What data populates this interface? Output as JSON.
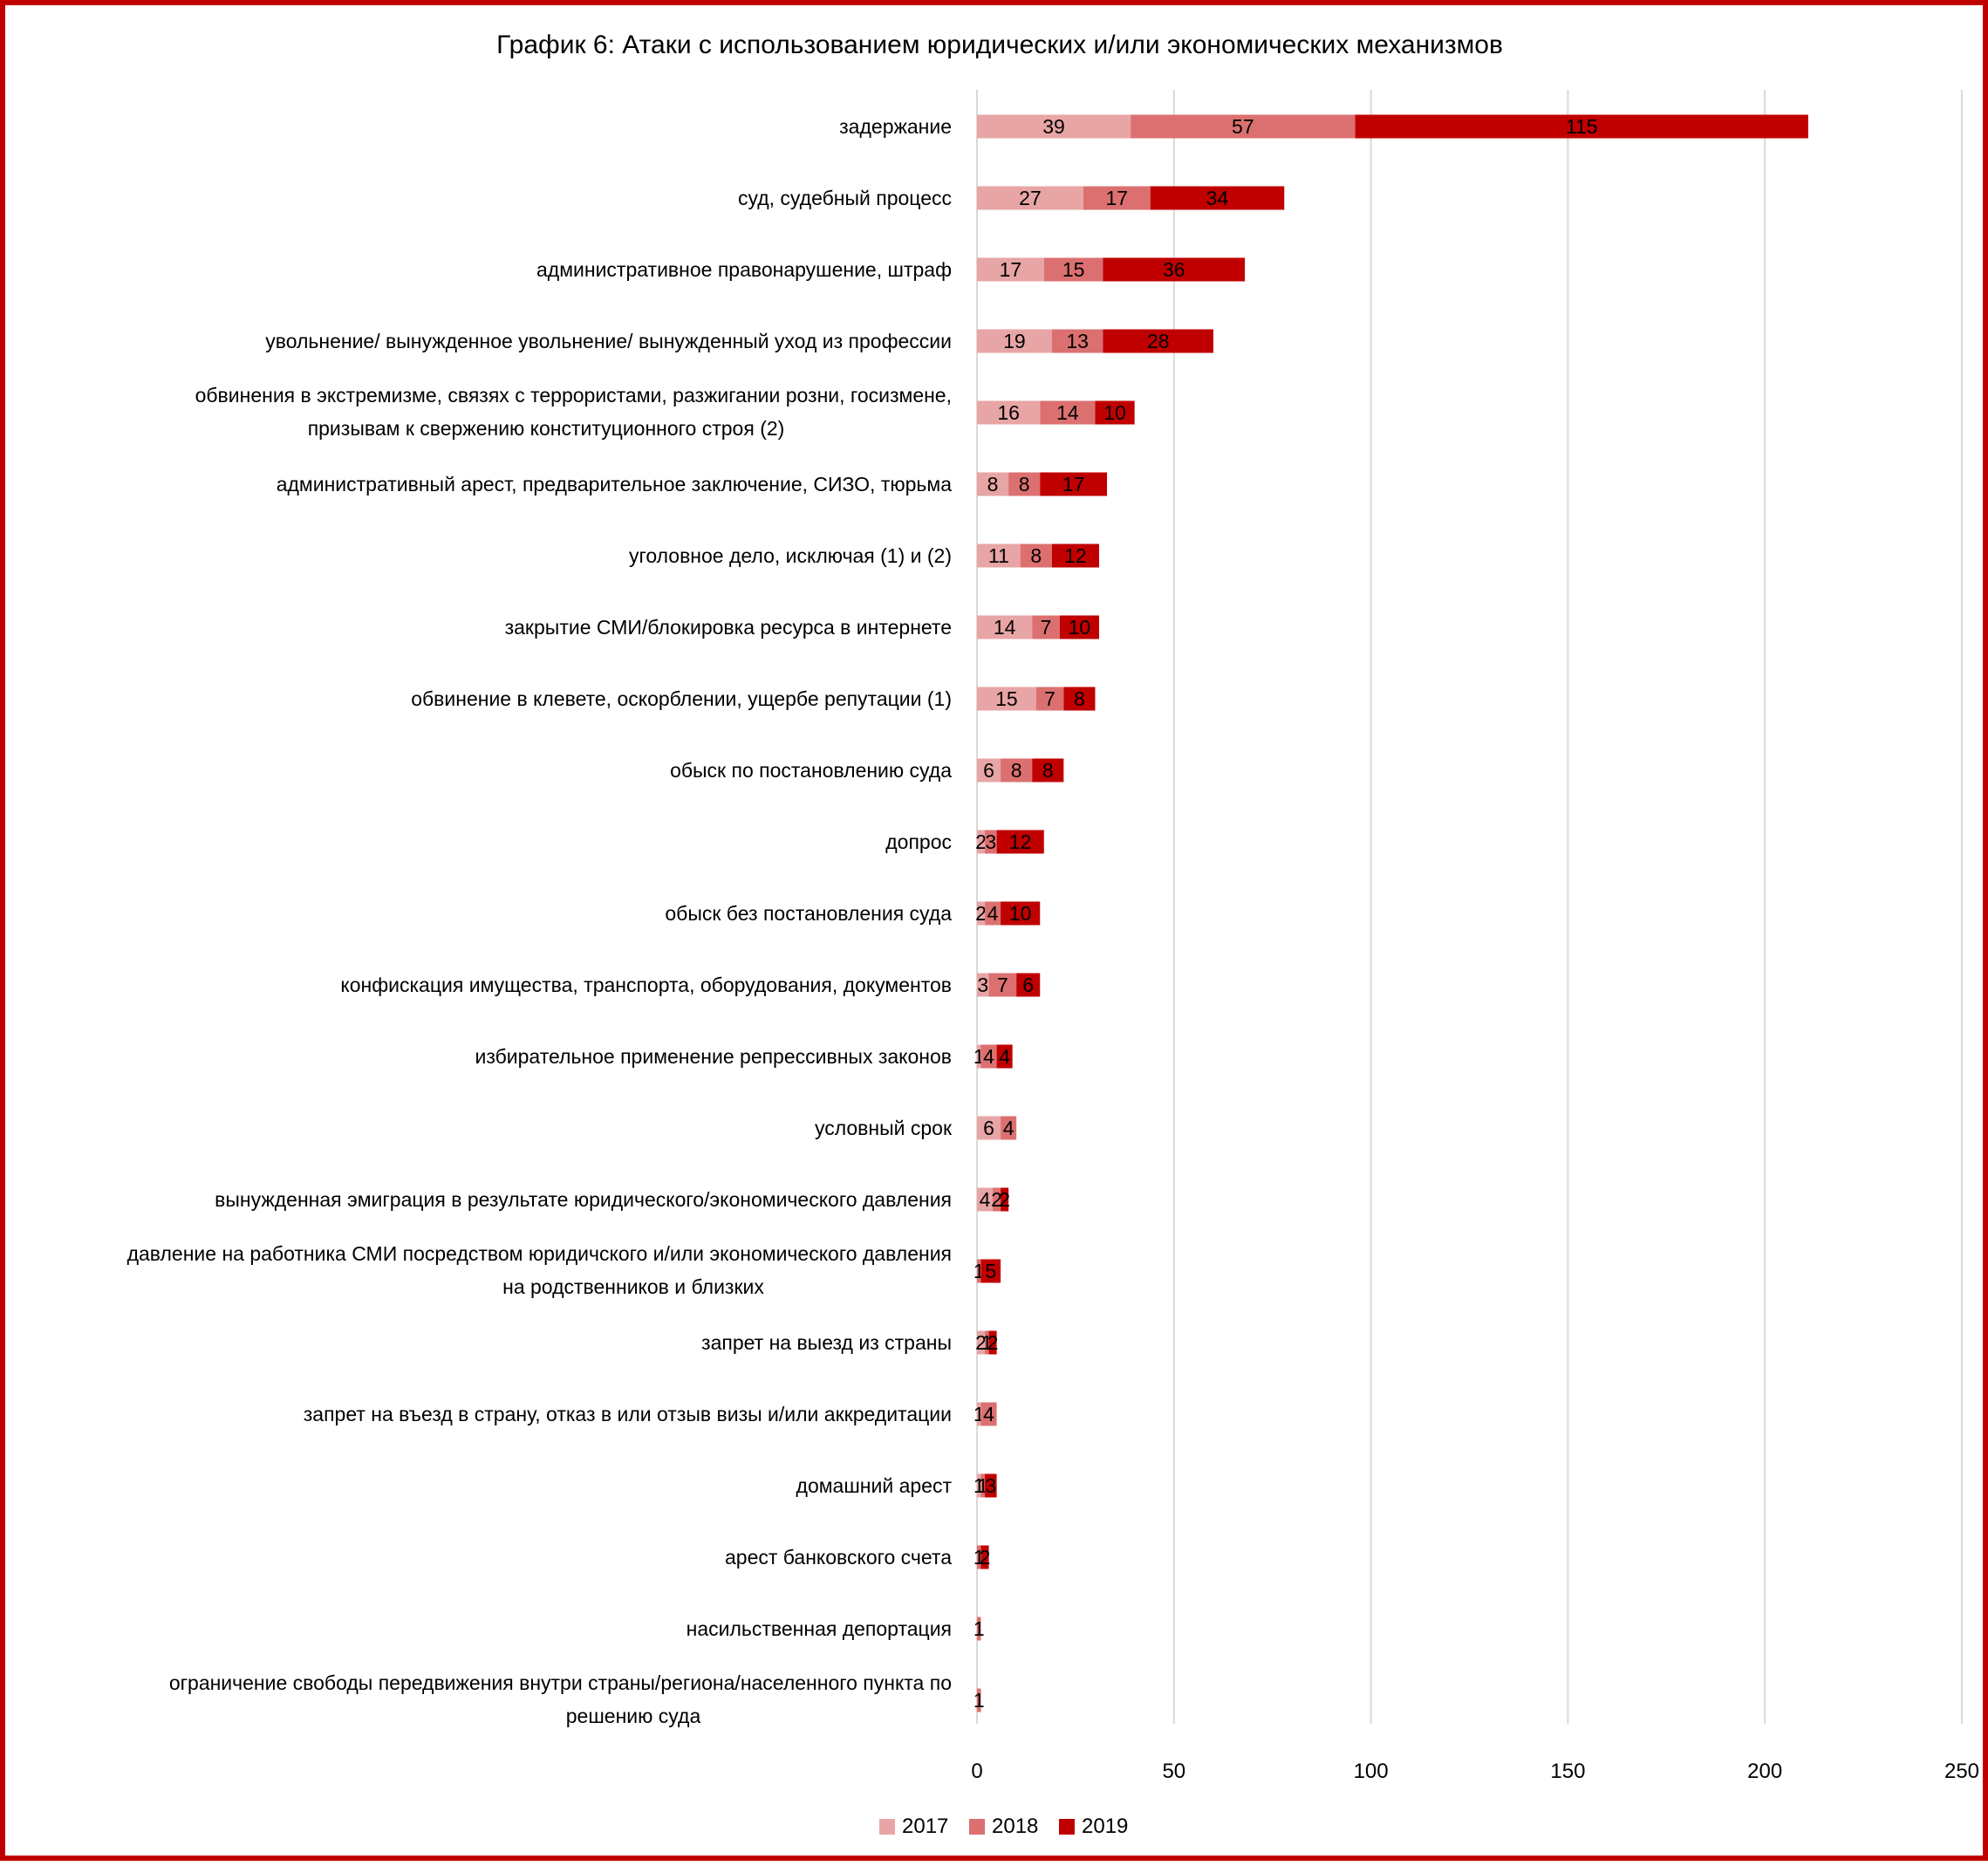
{
  "chart_data": {
    "type": "bar",
    "orientation": "horizontal",
    "stacked": true,
    "title": "График 6: Атаки с использованием юридических и/или экономических механизмов",
    "xlim": [
      0,
      250
    ],
    "xticks": [
      0,
      50,
      100,
      150,
      200,
      250
    ],
    "grid": true,
    "legend_position": "bottom",
    "categories": [
      [
        "задержание"
      ],
      [
        "суд, судебный процесс"
      ],
      [
        "административное правонарушение, штраф"
      ],
      [
        "увольнение/ вынужденное увольнение/ вынужденный уход из профессии"
      ],
      [
        "обвинения в экстремизме, связях с террористами, разжигании розни, госизмене,",
        "призывам к свержению конституционного строя (2)"
      ],
      [
        "административный арест, предварительное заключение, СИЗО, тюрьма"
      ],
      [
        "уголовное дело, исключая (1) и (2)"
      ],
      [
        "закрытие СМИ/блокировка ресурса в интернете"
      ],
      [
        "обвинение в клевете, оскорблении, ущербе репутации (1)"
      ],
      [
        "обыск по постановлению суда"
      ],
      [
        "допрос"
      ],
      [
        "обыск без постановления суда"
      ],
      [
        "конфискация имущества, транспорта, оборудования, документов"
      ],
      [
        "избирательное применение репрессивных законов"
      ],
      [
        "условный срок"
      ],
      [
        "вынужденная эмиграция в результате юридического/экономического давления"
      ],
      [
        "давление на работника СМИ посредством юридичского и/или экономического давления",
        "на родственников и близких"
      ],
      [
        "запрет на выезд из страны"
      ],
      [
        "запрет на въезд в страну, отказ в или отзыв визы и/или аккредитации"
      ],
      [
        "домашний арест"
      ],
      [
        "арест банковского счета"
      ],
      [
        "насильственная депортация"
      ],
      [
        "ограничение свободы передвижения внутри страны/региона/населенного пункта по",
        "решению суда"
      ]
    ],
    "series": [
      {
        "name": "2017",
        "color": "#e8a5a5",
        "values": [
          39,
          27,
          17,
          19,
          16,
          8,
          11,
          14,
          15,
          6,
          2,
          2,
          3,
          1,
          6,
          4,
          null,
          2,
          1,
          1,
          null,
          null,
          null
        ]
      },
      {
        "name": "2018",
        "color": "#dc7070",
        "values": [
          57,
          17,
          15,
          13,
          14,
          8,
          8,
          7,
          7,
          8,
          3,
          4,
          7,
          4,
          4,
          2,
          1,
          1,
          4,
          1,
          1,
          1,
          1
        ]
      },
      {
        "name": "2019",
        "color": "#c00000",
        "values": [
          115,
          34,
          36,
          28,
          10,
          17,
          12,
          10,
          8,
          8,
          12,
          10,
          6,
          4,
          null,
          2,
          5,
          2,
          null,
          3,
          2,
          null,
          null
        ]
      }
    ]
  }
}
